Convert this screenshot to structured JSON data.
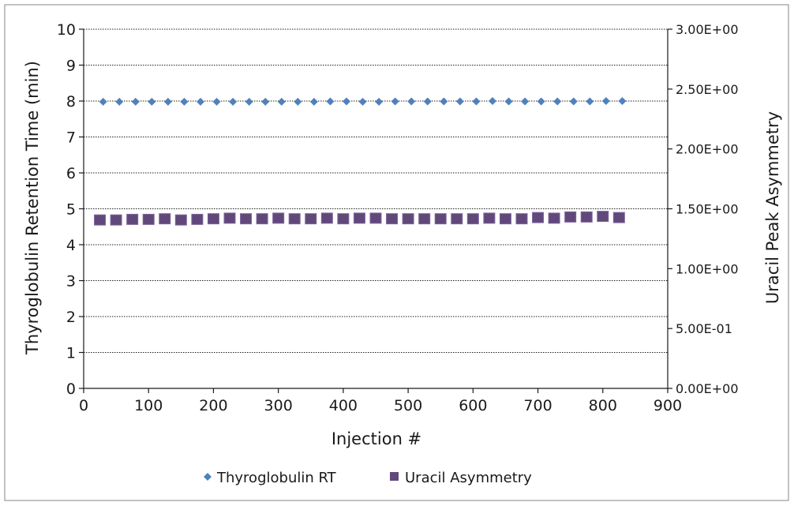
{
  "chart_data": {
    "type": "scatter",
    "title": "",
    "xlabel": "Injection #",
    "ylabel_left": "Thyroglobulin Retention Time (min)",
    "ylabel_right": "Uracil Peak Asymmetry",
    "xlim": [
      0,
      900
    ],
    "ylim_left": [
      0,
      10
    ],
    "ylim_right": [
      0,
      3.0
    ],
    "x_ticks": [
      "0",
      "100",
      "200",
      "300",
      "400",
      "500",
      "600",
      "700",
      "800",
      "900"
    ],
    "y_left_ticks": [
      "0",
      "1",
      "2",
      "3",
      "4",
      "5",
      "6",
      "7",
      "8",
      "9",
      "10"
    ],
    "y_right_ticks": [
      "0.00E+00",
      "5.00E-01",
      "1.00E+00",
      "1.50E+00",
      "2.00E+00",
      "2.50E+00",
      "3.00E+00"
    ],
    "grid": true,
    "legend_position": "bottom",
    "series": [
      {
        "name": "Thyroglobulin RT",
        "axis": "left",
        "marker": "diamond",
        "color": "#4f81bd",
        "points": [
          [
            30,
            7.98
          ],
          [
            55,
            7.98
          ],
          [
            80,
            7.98
          ],
          [
            105,
            7.98
          ],
          [
            130,
            7.98
          ],
          [
            155,
            7.98
          ],
          [
            180,
            7.98
          ],
          [
            205,
            7.98
          ],
          [
            230,
            7.98
          ],
          [
            255,
            7.98
          ],
          [
            280,
            7.98
          ],
          [
            305,
            7.98
          ],
          [
            330,
            7.98
          ],
          [
            355,
            7.98
          ],
          [
            380,
            7.99
          ],
          [
            405,
            7.99
          ],
          [
            430,
            7.98
          ],
          [
            455,
            7.98
          ],
          [
            480,
            7.99
          ],
          [
            505,
            7.99
          ],
          [
            530,
            7.99
          ],
          [
            555,
            7.99
          ],
          [
            580,
            7.99
          ],
          [
            605,
            7.99
          ],
          [
            630,
            8.0
          ],
          [
            655,
            7.99
          ],
          [
            680,
            7.99
          ],
          [
            705,
            7.99
          ],
          [
            730,
            7.99
          ],
          [
            755,
            7.99
          ],
          [
            780,
            7.99
          ],
          [
            805,
            8.0
          ],
          [
            830,
            8.0
          ]
        ]
      },
      {
        "name": "Uracil Asymmetry",
        "axis": "right",
        "marker": "square",
        "color": "#60497a",
        "points": [
          [
            25,
            1.41
          ],
          [
            50,
            1.41
          ],
          [
            75,
            1.415
          ],
          [
            100,
            1.415
          ],
          [
            125,
            1.42
          ],
          [
            150,
            1.41
          ],
          [
            175,
            1.415
          ],
          [
            200,
            1.42
          ],
          [
            225,
            1.425
          ],
          [
            250,
            1.42
          ],
          [
            275,
            1.42
          ],
          [
            300,
            1.425
          ],
          [
            325,
            1.42
          ],
          [
            350,
            1.42
          ],
          [
            375,
            1.425
          ],
          [
            400,
            1.42
          ],
          [
            425,
            1.425
          ],
          [
            450,
            1.425
          ],
          [
            475,
            1.42
          ],
          [
            500,
            1.42
          ],
          [
            525,
            1.42
          ],
          [
            550,
            1.42
          ],
          [
            575,
            1.42
          ],
          [
            600,
            1.42
          ],
          [
            625,
            1.425
          ],
          [
            650,
            1.42
          ],
          [
            675,
            1.42
          ],
          [
            700,
            1.43
          ],
          [
            725,
            1.425
          ],
          [
            750,
            1.435
          ],
          [
            775,
            1.435
          ],
          [
            800,
            1.44
          ],
          [
            825,
            1.43
          ]
        ]
      }
    ]
  }
}
